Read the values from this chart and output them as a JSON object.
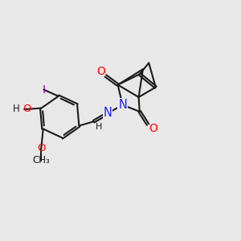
{
  "bg_color": "#e8e8e8",
  "bond_color": "#1a1a1a",
  "bond_width": 1.5,
  "dbo": 0.055,
  "figsize": [
    3.0,
    3.0
  ],
  "dpi": 100,
  "xlim": [
    0,
    10
  ],
  "ylim": [
    0,
    10
  ],
  "colors": {
    "O": "#ff0000",
    "N": "#2020ff",
    "I": "#8800aa",
    "C": "#1a1a1a",
    "H": "#1a1a1a"
  },
  "fontsize": 9.5
}
